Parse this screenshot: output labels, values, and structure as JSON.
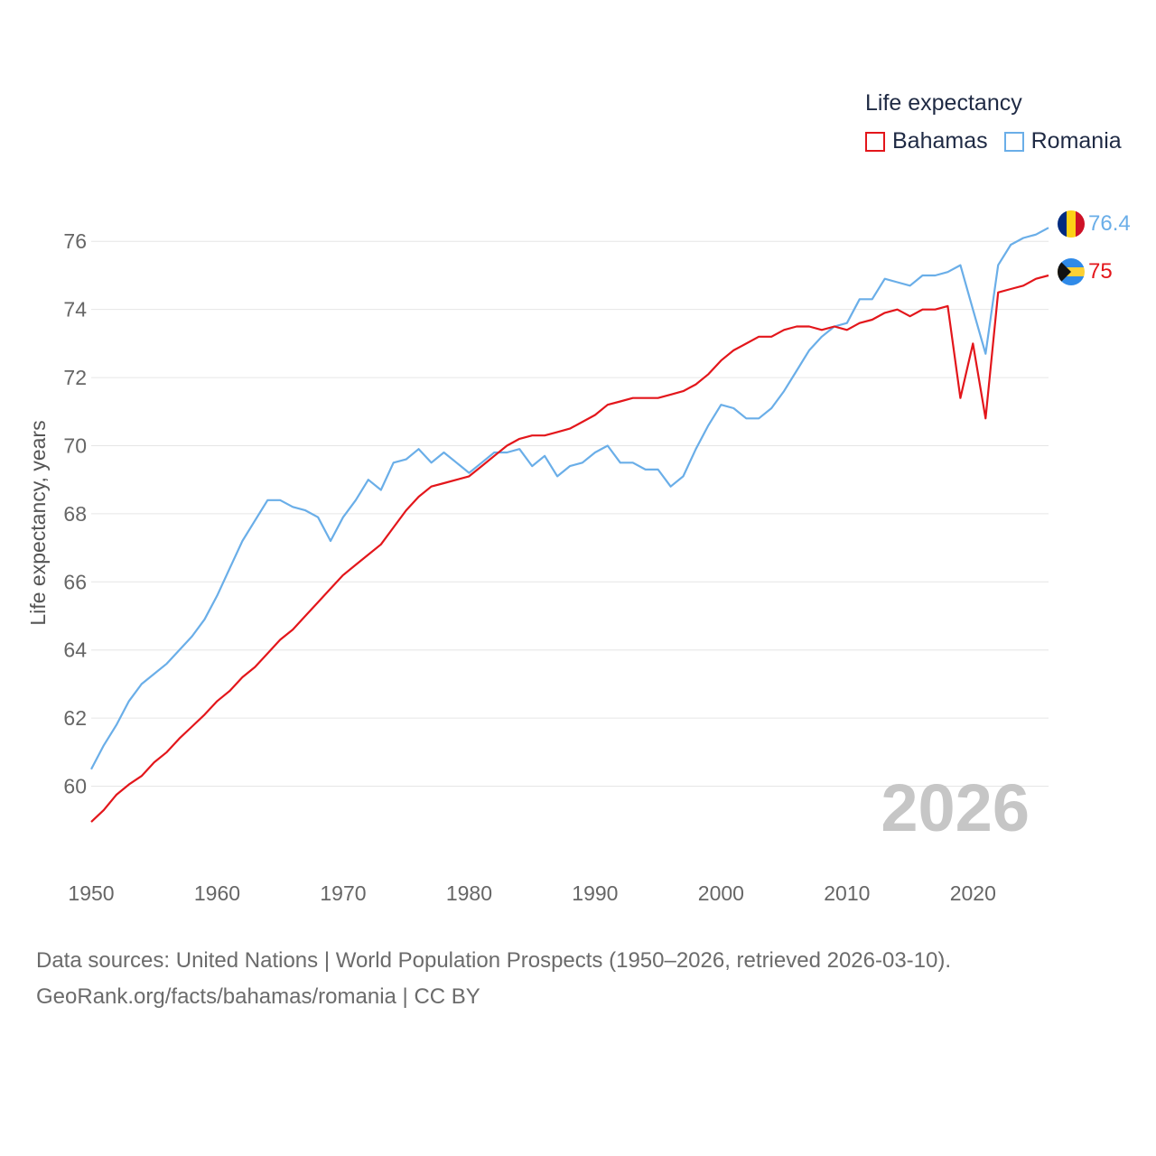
{
  "legend": {
    "title": "Life expectancy"
  },
  "footer": {
    "source": "Data sources: United Nations | World Population Prospects (1950–2026, retrieved 2026-03-10).",
    "credit": "GeoRank.org/facts/bahamas/romania | CC BY"
  },
  "colors": {
    "bahamas": "#e3161b",
    "romania": "#6aaee8",
    "grid": "#e6e6e6",
    "tick": "#666666",
    "watermark": "#c6c6c6"
  },
  "chart_data": {
    "type": "line",
    "title": "",
    "xlabel": "",
    "ylabel": "Life expectancy, years",
    "xlim": [
      1950,
      2026
    ],
    "ylim": [
      58.9,
      77.2
    ],
    "xticks": [
      1950,
      1960,
      1970,
      1980,
      1990,
      2000,
      2010,
      2020
    ],
    "yticks": [
      60,
      62,
      64,
      66,
      68,
      70,
      72,
      74,
      76
    ],
    "grid": true,
    "legend_position": "top-right",
    "watermark_year": "2026",
    "x_start": 1950,
    "series": [
      {
        "name": "Bahamas",
        "color": "#e3161b",
        "end_label": "75",
        "flag": "bahamas-flag",
        "values": [
          58.95,
          59.3,
          59.75,
          60.05,
          60.3,
          60.7,
          61.0,
          61.4,
          61.75,
          62.1,
          62.5,
          62.8,
          63.2,
          63.5,
          63.9,
          64.3,
          64.6,
          65.0,
          65.4,
          65.8,
          66.2,
          66.5,
          66.8,
          67.1,
          67.6,
          68.1,
          68.5,
          68.8,
          68.9,
          69.0,
          69.1,
          69.4,
          69.7,
          70.0,
          70.2,
          70.3,
          70.3,
          70.4,
          70.5,
          70.7,
          70.9,
          71.2,
          71.3,
          71.4,
          71.4,
          71.4,
          71.5,
          71.6,
          71.8,
          72.1,
          72.5,
          72.8,
          73.0,
          73.2,
          73.2,
          73.4,
          73.5,
          73.5,
          73.4,
          73.5,
          73.4,
          73.6,
          73.7,
          73.9,
          74.0,
          73.8,
          74.0,
          74.0,
          74.1,
          71.4,
          73.0,
          70.8,
          74.5,
          74.6,
          74.7,
          74.9,
          75.0
        ]
      },
      {
        "name": "Romania",
        "color": "#6aaee8",
        "end_label": "76.4",
        "flag": "romania-flag",
        "values": [
          60.5,
          61.2,
          61.8,
          62.5,
          63.0,
          63.3,
          63.6,
          64.0,
          64.4,
          64.9,
          65.6,
          66.4,
          67.2,
          67.8,
          68.4,
          68.4,
          68.2,
          68.1,
          67.9,
          67.2,
          67.9,
          68.4,
          69.0,
          68.7,
          69.5,
          69.6,
          69.9,
          69.5,
          69.8,
          69.5,
          69.2,
          69.5,
          69.8,
          69.8,
          69.9,
          69.4,
          69.7,
          69.1,
          69.4,
          69.5,
          69.8,
          70.0,
          69.5,
          69.5,
          69.3,
          69.3,
          68.8,
          69.1,
          69.9,
          70.6,
          71.2,
          71.1,
          70.8,
          70.8,
          71.1,
          71.6,
          72.2,
          72.8,
          73.2,
          73.5,
          73.6,
          74.3,
          74.3,
          74.9,
          74.8,
          74.7,
          75.0,
          75.0,
          75.1,
          75.3,
          74.0,
          72.7,
          75.3,
          75.9,
          76.1,
          76.2,
          76.4
        ]
      }
    ]
  }
}
